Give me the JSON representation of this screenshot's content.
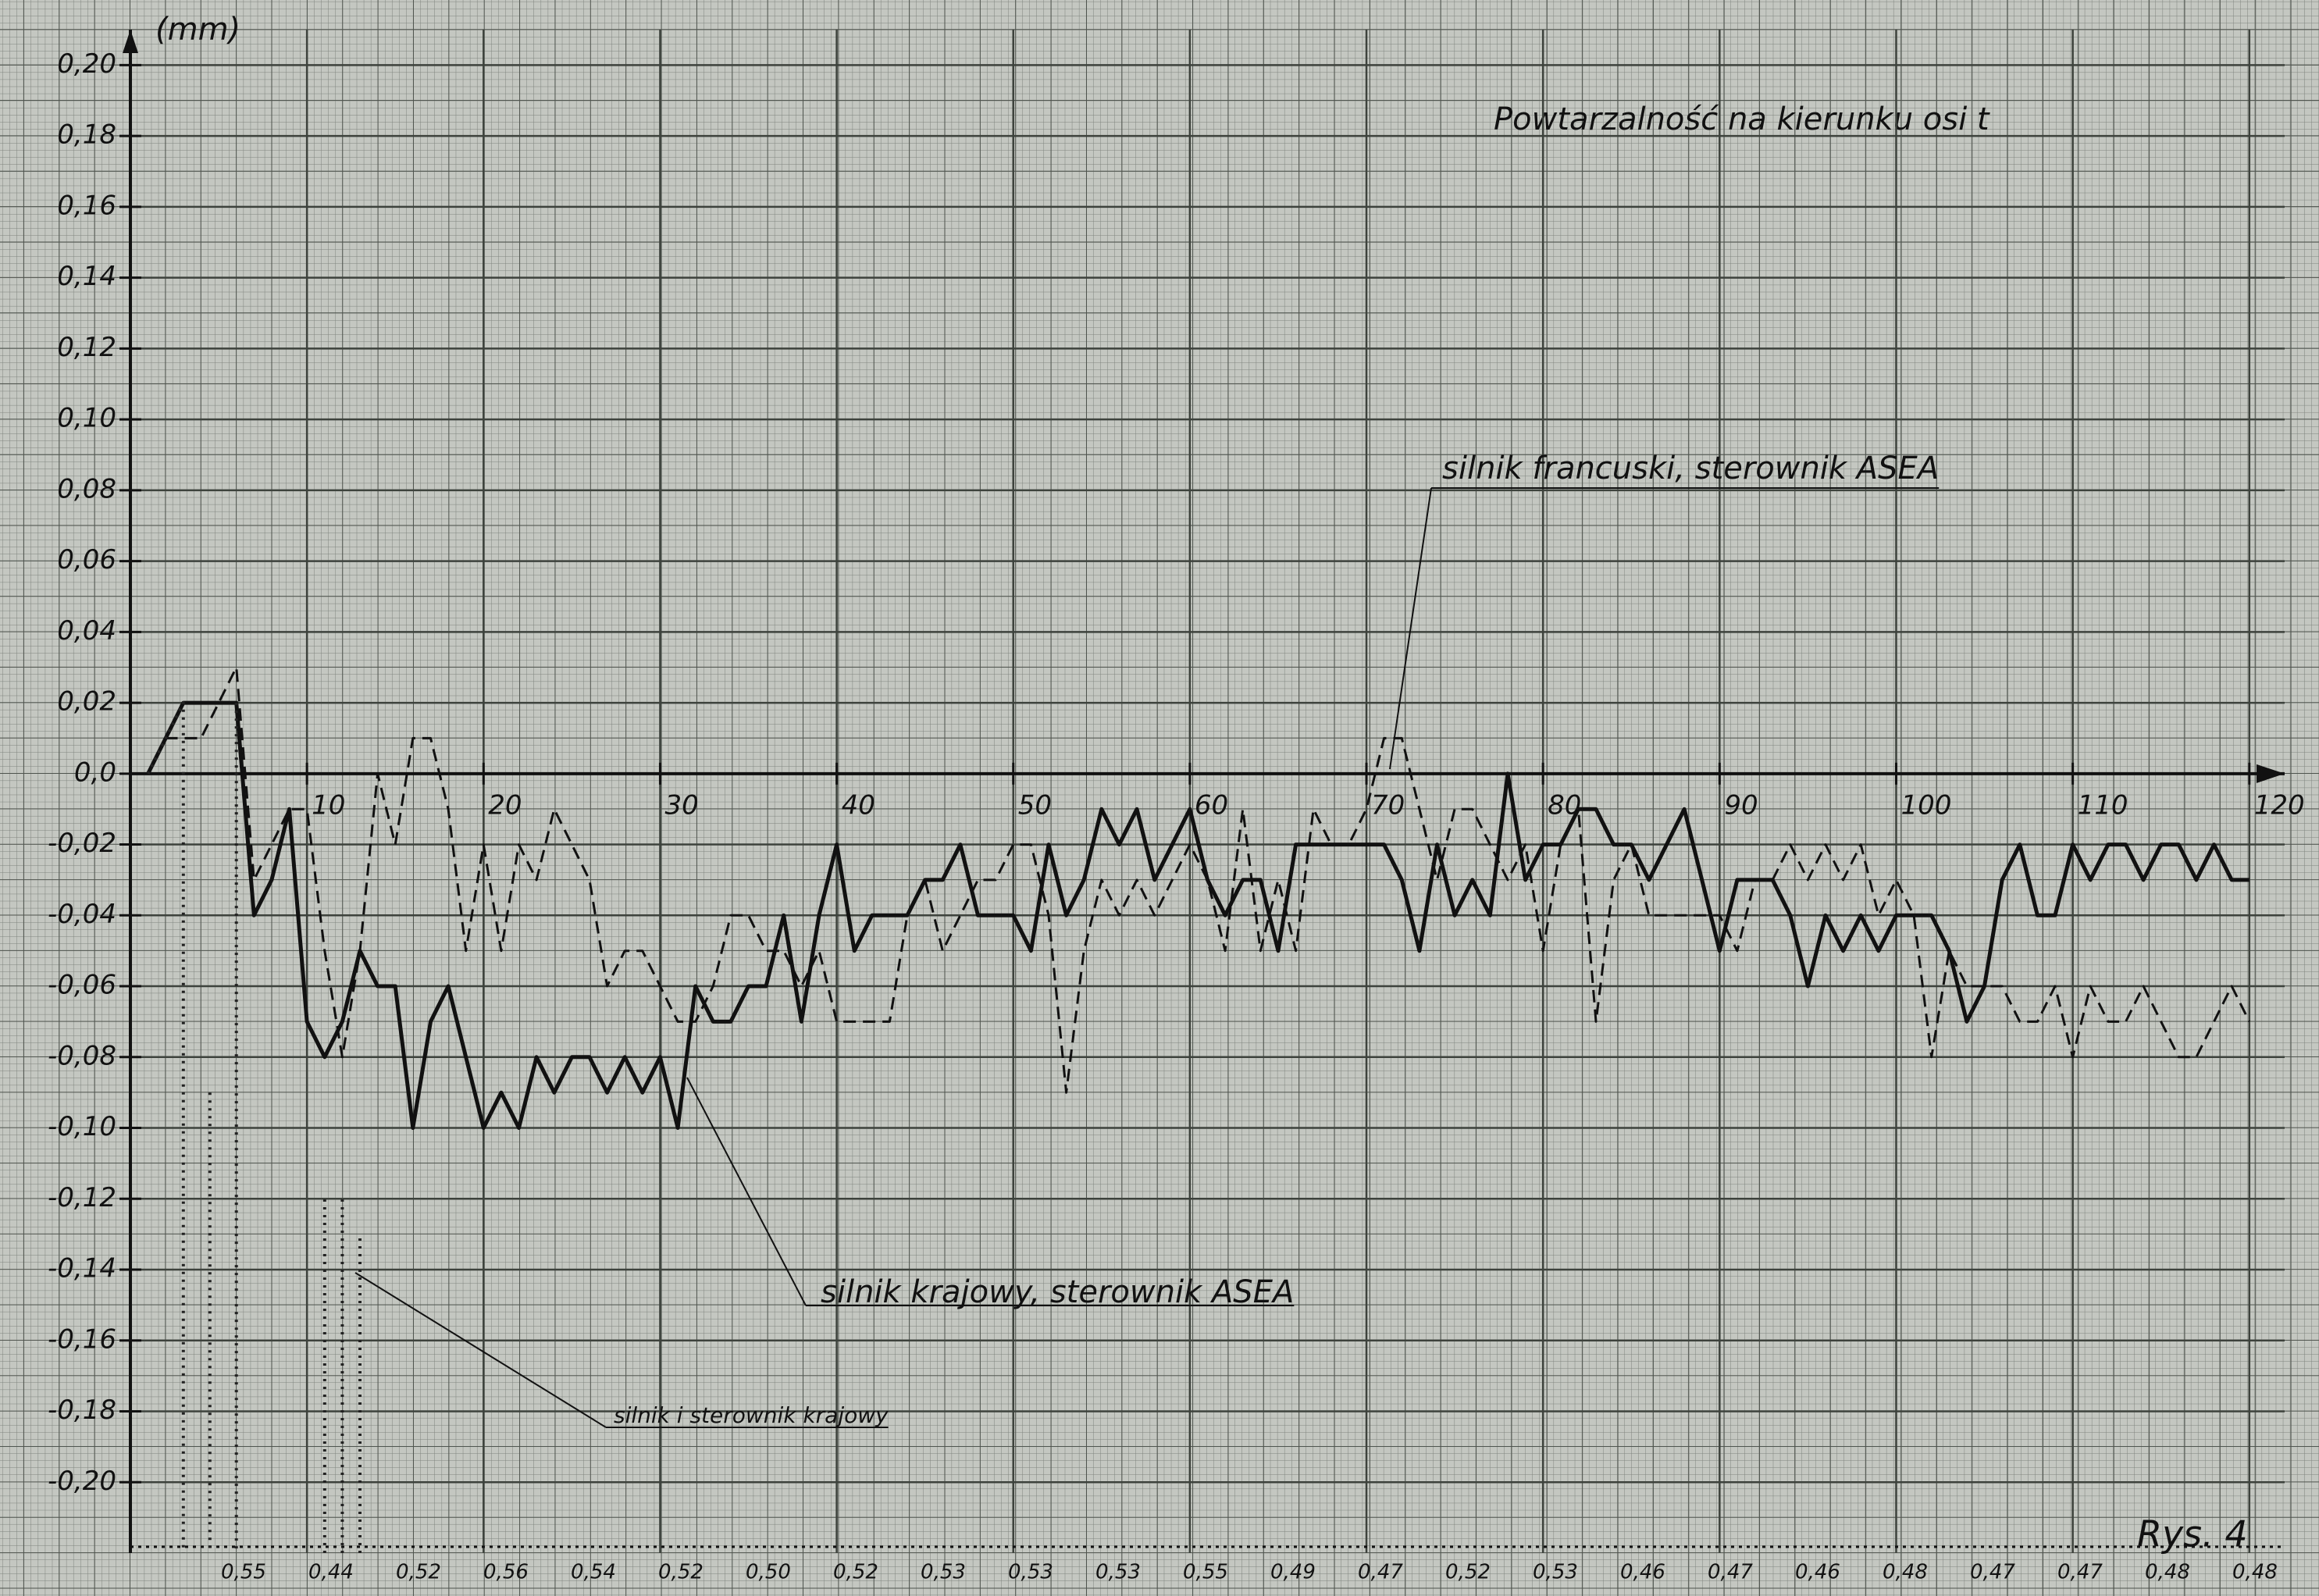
{
  "chart_data": {
    "type": "line",
    "title": "Powtarzalność na kierunku osi t",
    "y_unit": "(mm)",
    "xlim": [
      0,
      122
    ],
    "ylim": [
      -0.22,
      0.21
    ],
    "xticks": [
      10,
      20,
      30,
      40,
      50,
      60,
      70,
      80,
      90,
      100,
      110,
      120
    ],
    "yticks": [
      {
        "value": 0.2,
        "label": "0,20"
      },
      {
        "value": 0.18,
        "label": "0,18"
      },
      {
        "value": 0.16,
        "label": "0,16"
      },
      {
        "value": 0.14,
        "label": "0,14"
      },
      {
        "value": 0.12,
        "label": "0,12"
      },
      {
        "value": 0.1,
        "label": "0,10"
      },
      {
        "value": 0.08,
        "label": "0,08"
      },
      {
        "value": 0.06,
        "label": "0,06"
      },
      {
        "value": 0.04,
        "label": "0,04"
      },
      {
        "value": 0.02,
        "label": "0,02"
      },
      {
        "value": 0,
        "label": "0,0"
      },
      {
        "value": -0.02,
        "label": "-0,02"
      },
      {
        "value": -0.04,
        "label": "-0,04"
      },
      {
        "value": -0.06,
        "label": "-0,06"
      },
      {
        "value": -0.08,
        "label": "-0,08"
      },
      {
        "value": -0.1,
        "label": "-0,10"
      },
      {
        "value": -0.12,
        "label": "-0,12"
      },
      {
        "value": -0.14,
        "label": "-0,14"
      },
      {
        "value": -0.16,
        "label": "-0,16"
      },
      {
        "value": -0.18,
        "label": "-0,18"
      },
      {
        "value": -0.2,
        "label": "-0,20"
      }
    ],
    "grid": true,
    "series": [
      {
        "name": "silnik krajowy, sterownik ASEA",
        "color": "#111111",
        "style": "solid",
        "x": [
          1,
          2,
          3,
          4,
          5,
          6,
          7,
          8,
          9,
          10,
          11,
          12,
          13,
          14,
          15,
          16,
          17,
          18,
          19,
          20,
          21,
          22,
          23,
          24,
          25,
          26,
          27,
          28,
          29,
          30,
          31,
          32,
          33,
          34,
          35,
          36,
          37,
          38,
          39,
          40,
          41,
          42,
          43,
          44,
          45,
          46,
          47,
          48,
          49,
          50,
          51,
          52,
          53,
          54,
          55,
          56,
          57,
          58,
          59,
          60,
          61,
          62,
          63,
          64,
          65,
          66,
          67,
          68,
          69,
          70,
          71,
          72,
          73,
          74,
          75,
          76,
          77,
          78,
          79,
          80,
          81,
          82,
          83,
          84,
          85,
          86,
          87,
          88,
          89,
          90,
          91,
          92,
          93,
          94,
          95,
          96,
          97,
          98,
          99,
          100,
          101,
          102,
          103,
          104,
          105,
          106,
          107,
          108,
          109,
          110,
          111,
          112,
          113,
          114,
          115,
          116,
          117,
          118,
          119,
          120
        ],
        "values": [
          0,
          0.01,
          0.02,
          0.02,
          0.02,
          0.02,
          -0.04,
          -0.03,
          -0.01,
          -0.07,
          -0.08,
          -0.07,
          -0.05,
          -0.06,
          -0.06,
          -0.1,
          -0.07,
          -0.06,
          -0.08,
          -0.1,
          -0.09,
          -0.1,
          -0.08,
          -0.09,
          -0.08,
          -0.08,
          -0.09,
          -0.08,
          -0.09,
          -0.08,
          -0.1,
          -0.06,
          -0.07,
          -0.07,
          -0.06,
          -0.06,
          -0.04,
          -0.07,
          -0.04,
          -0.02,
          -0.05,
          -0.04,
          -0.04,
          -0.04,
          -0.03,
          -0.03,
          -0.02,
          -0.04,
          -0.04,
          -0.04,
          -0.05,
          -0.02,
          -0.04,
          -0.03,
          -0.01,
          -0.02,
          -0.01,
          -0.03,
          -0.02,
          -0.01,
          -0.03,
          -0.04,
          -0.03,
          -0.03,
          -0.05,
          -0.02,
          -0.02,
          -0.02,
          -0.02,
          -0.02,
          -0.02,
          -0.03,
          -0.05,
          -0.02,
          -0.04,
          -0.03,
          -0.04,
          0,
          -0.03,
          -0.02,
          -0.02,
          -0.01,
          -0.01,
          -0.02,
          -0.02,
          -0.03,
          -0.02,
          -0.01,
          -0.03,
          -0.05,
          -0.03,
          -0.03,
          -0.03,
          -0.04,
          -0.06,
          -0.04,
          -0.05,
          -0.04,
          -0.05,
          -0.04,
          -0.04,
          -0.04,
          -0.05,
          -0.07,
          -0.06,
          -0.03,
          -0.02,
          -0.04,
          -0.04,
          -0.02,
          -0.03,
          -0.02,
          -0.02,
          -0.03,
          -0.02,
          -0.02,
          -0.03,
          -0.02,
          -0.03,
          -0.03
        ]
      },
      {
        "name": "silnik francuski, sterownik ASEA",
        "color": "#111111",
        "style": "dashed",
        "x": [
          1,
          2,
          3,
          4,
          5,
          6,
          7,
          8,
          9,
          10,
          11,
          12,
          13,
          14,
          15,
          16,
          17,
          18,
          19,
          20,
          21,
          22,
          23,
          24,
          25,
          26,
          27,
          28,
          29,
          30,
          31,
          32,
          33,
          34,
          35,
          36,
          37,
          38,
          39,
          40,
          41,
          42,
          43,
          44,
          45,
          46,
          47,
          48,
          49,
          50,
          51,
          52,
          53,
          54,
          55,
          56,
          57,
          58,
          59,
          60,
          61,
          62,
          63,
          64,
          65,
          66,
          67,
          68,
          69,
          70,
          71,
          72,
          73,
          74,
          75,
          76,
          77,
          78,
          79,
          80,
          81,
          82,
          83,
          84,
          85,
          86,
          87,
          88,
          89,
          90,
          91,
          92,
          93,
          94,
          95,
          96,
          97,
          98,
          99,
          100,
          101,
          102,
          103,
          104,
          105,
          106,
          107,
          108,
          109,
          110,
          111,
          112,
          113,
          114,
          115,
          116,
          117,
          118,
          119,
          120
        ],
        "values": [
          0,
          0.01,
          0.01,
          0.01,
          0.02,
          0.03,
          -0.03,
          -0.02,
          -0.01,
          -0.01,
          -0.05,
          -0.08,
          -0.05,
          0,
          -0.02,
          0.01,
          0.01,
          -0.01,
          -0.05,
          -0.02,
          -0.05,
          -0.02,
          -0.03,
          -0.01,
          -0.02,
          -0.03,
          -0.06,
          -0.05,
          -0.05,
          -0.06,
          -0.07,
          -0.07,
          -0.06,
          -0.04,
          -0.04,
          -0.05,
          -0.05,
          -0.06,
          -0.05,
          -0.07,
          -0.07,
          -0.07,
          -0.07,
          -0.04,
          -0.03,
          -0.05,
          -0.04,
          -0.03,
          -0.03,
          -0.02,
          -0.02,
          -0.04,
          -0.09,
          -0.05,
          -0.03,
          -0.04,
          -0.03,
          -0.04,
          -0.03,
          -0.02,
          -0.03,
          -0.05,
          -0.01,
          -0.05,
          -0.03,
          -0.05,
          -0.01,
          -0.02,
          -0.02,
          -0.01,
          0.01,
          0.01,
          -0.01,
          -0.03,
          -0.01,
          -0.01,
          -0.02,
          -0.03,
          -0.02,
          -0.05,
          -0.02,
          -0.01,
          -0.07,
          -0.03,
          -0.02,
          -0.04,
          -0.04,
          -0.04,
          -0.04,
          -0.04,
          -0.05,
          -0.03,
          -0.03,
          -0.02,
          -0.03,
          -0.02,
          -0.03,
          -0.02,
          -0.04,
          -0.03,
          -0.04,
          -0.08,
          -0.05,
          -0.06,
          -0.06,
          -0.06,
          -0.07,
          -0.07,
          -0.06,
          -0.08,
          -0.06,
          -0.07,
          -0.07,
          -0.06,
          -0.07,
          -0.08,
          -0.08,
          -0.07,
          -0.06,
          -0.07
        ]
      },
      {
        "name": "silnik i sterownik krajowy",
        "color": "#222222",
        "style": "dotted",
        "x": [
          1,
          2,
          3,
          3,
          3,
          4.5,
          4.5,
          4.5,
          6,
          6,
          6,
          11,
          11,
          11,
          12,
          12,
          12,
          13,
          13
        ],
        "values": [
          0,
          0.01,
          0.02,
          -0.22,
          null,
          -0.09,
          -0.22,
          null,
          0.02,
          -0.22,
          null,
          -0.22,
          -0.12,
          null,
          -0.22,
          -0.12,
          null,
          -0.22,
          -0.13
        ]
      }
    ],
    "annotations": [
      "Rys. 4"
    ],
    "bottom_labels": [
      "0,55",
      "0,44",
      "0,52",
      "0,56",
      "0,54",
      "0,52",
      "0,50",
      "0,52",
      "0,53",
      "0,53",
      "0,53",
      "0,55",
      "0,49",
      "0,47",
      "0,52",
      "0,53",
      "0,46",
      "0,47",
      "0,46",
      "0,48",
      "0,47",
      "0,47",
      "0,48",
      "0,48"
    ]
  }
}
